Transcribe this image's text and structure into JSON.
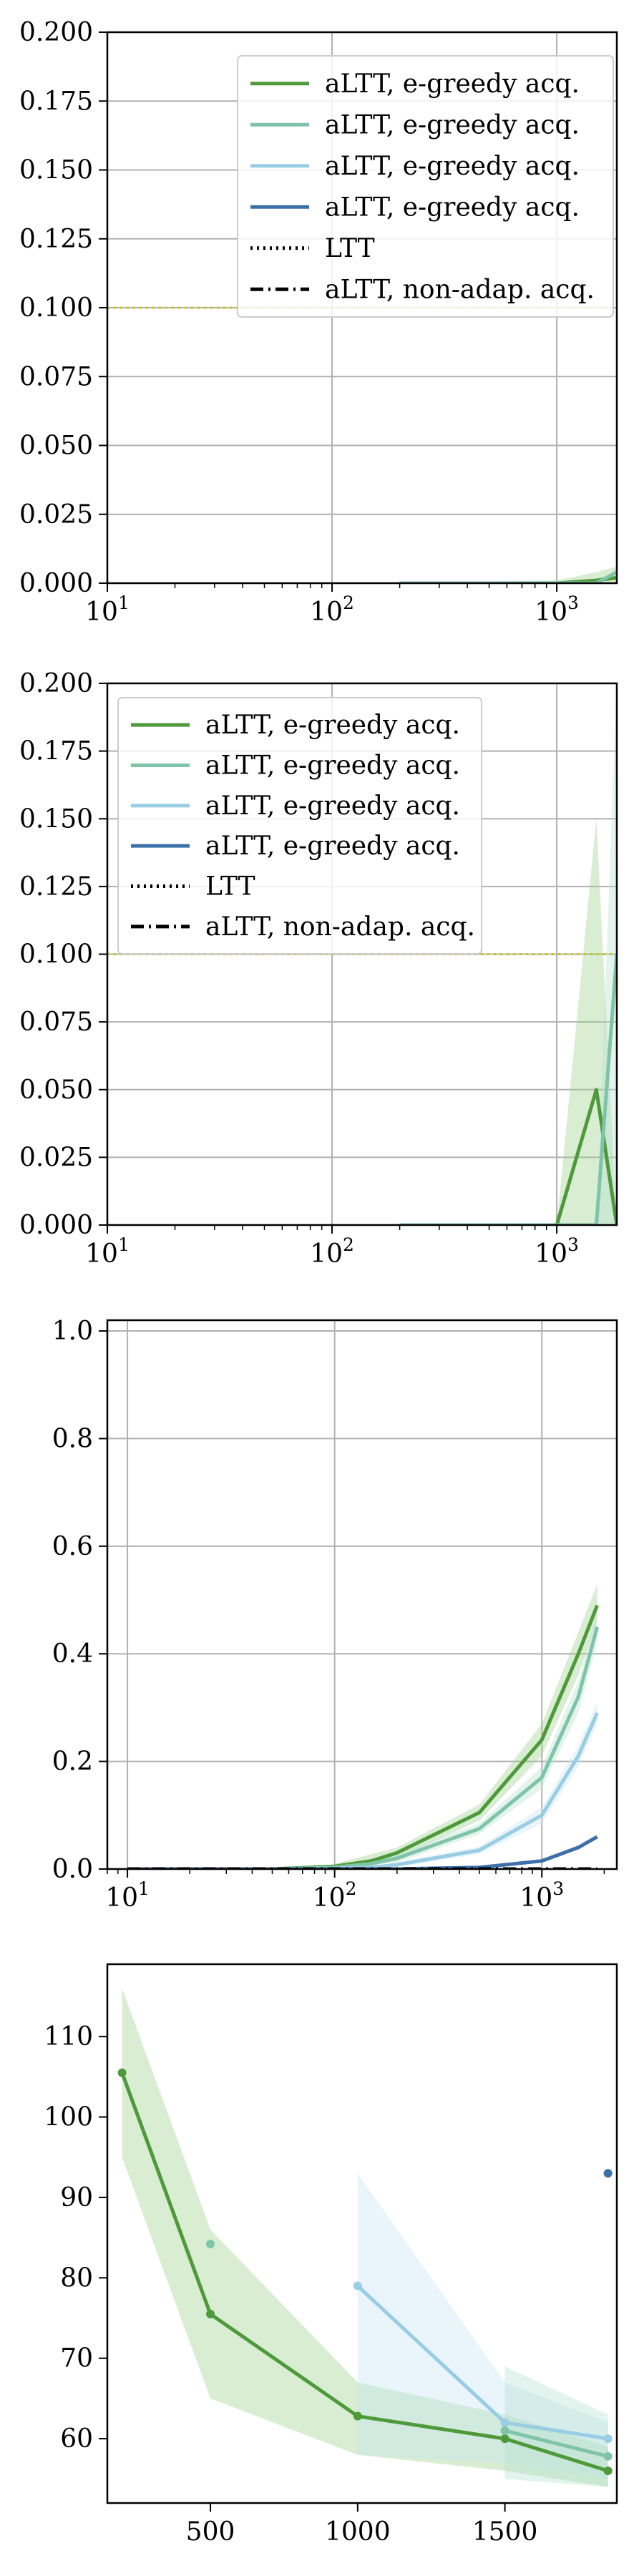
{
  "chart_data": [
    {
      "type": "line",
      "xscale": "log",
      "xlim": [
        10,
        1850
      ],
      "ylim": [
        0,
        0.2
      ],
      "grid": true,
      "xticks": [
        {
          "v": 10,
          "base": "10",
          "exp": "1"
        },
        {
          "v": 100,
          "base": "10",
          "exp": "2"
        },
        {
          "v": 1000,
          "base": "10",
          "exp": "3"
        }
      ],
      "yticks": [
        {
          "v": 0.0,
          "label": "0.000"
        },
        {
          "v": 0.025,
          "label": "0.025"
        },
        {
          "v": 0.05,
          "label": "0.050"
        },
        {
          "v": 0.075,
          "label": "0.075"
        },
        {
          "v": 0.1,
          "label": "0.100"
        },
        {
          "v": 0.125,
          "label": "0.125"
        },
        {
          "v": 0.15,
          "label": "0.150"
        },
        {
          "v": 0.175,
          "label": "0.175"
        },
        {
          "v": 0.2,
          "label": "0.200"
        }
      ],
      "legend": {
        "placement": "top-right",
        "entries": [
          {
            "label": "aLTT, e-greedy acq.",
            "style": "solid",
            "color": "#4e9a3b"
          },
          {
            "label": "aLTT, e-greedy acq.",
            "style": "solid",
            "color": "#7fc4a8"
          },
          {
            "label": "aLTT, e-greedy acq.",
            "style": "solid",
            "color": "#98cde3"
          },
          {
            "label": "aLTT, e-greedy acq.",
            "style": "solid",
            "color": "#3b70a8"
          },
          {
            "label": "LTT",
            "style": "dotted",
            "color": "#000000"
          },
          {
            "label": "aLTT, non-adap. acq.",
            "style": "dashdot",
            "color": "#000000"
          }
        ]
      },
      "hlines": [
        {
          "y": 0.1,
          "color": "#c8c800",
          "style": "dotted"
        }
      ],
      "series": [
        {
          "color": "#4e9a3b",
          "x": [
            200,
            500,
            1000,
            1500,
            1850
          ],
          "y": [
            0,
            0,
            0,
            0.001,
            0.002
          ]
        },
        {
          "color": "#7fc4a8",
          "x": [
            200,
            500,
            1000,
            1500,
            1850
          ],
          "y": [
            0,
            0,
            0,
            0,
            0.004
          ]
        }
      ],
      "bands": [
        {
          "color": "#9ccf8c",
          "x": [
            200,
            1000,
            1500,
            1850
          ],
          "lower": [
            0,
            0,
            0,
            0
          ],
          "upper": [
            0,
            0.001,
            0.004,
            0.006
          ]
        }
      ]
    },
    {
      "type": "line",
      "xscale": "log",
      "xlim": [
        10,
        1850
      ],
      "ylim": [
        0,
        0.2
      ],
      "grid": true,
      "xticks": [
        {
          "v": 10,
          "base": "10",
          "exp": "1"
        },
        {
          "v": 100,
          "base": "10",
          "exp": "2"
        },
        {
          "v": 1000,
          "base": "10",
          "exp": "3"
        }
      ],
      "yticks": [
        {
          "v": 0.0,
          "label": "0.000"
        },
        {
          "v": 0.025,
          "label": "0.025"
        },
        {
          "v": 0.05,
          "label": "0.050"
        },
        {
          "v": 0.075,
          "label": "0.075"
        },
        {
          "v": 0.1,
          "label": "0.100"
        },
        {
          "v": 0.125,
          "label": "0.125"
        },
        {
          "v": 0.15,
          "label": "0.150"
        },
        {
          "v": 0.175,
          "label": "0.175"
        },
        {
          "v": 0.2,
          "label": "0.200"
        }
      ],
      "legend": {
        "placement": "top-left",
        "entries": [
          {
            "label": "aLTT, e-greedy acq.",
            "style": "solid",
            "color": "#4e9a3b"
          },
          {
            "label": "aLTT, e-greedy acq.",
            "style": "solid",
            "color": "#7fc4a8"
          },
          {
            "label": "aLTT, e-greedy acq.",
            "style": "solid",
            "color": "#98cde3"
          },
          {
            "label": "aLTT, e-greedy acq.",
            "style": "solid",
            "color": "#3b70a8"
          },
          {
            "label": "LTT",
            "style": "dotted",
            "color": "#000000"
          },
          {
            "label": "aLTT, non-adap. acq.",
            "style": "dashdot",
            "color": "#000000"
          }
        ]
      },
      "hlines": [
        {
          "y": 0.1,
          "color": "#c8c800",
          "style": "dotted"
        }
      ],
      "series": [
        {
          "color": "#4e9a3b",
          "x": [
            200,
            500,
            1000,
            1500,
            1850
          ],
          "y": [
            0,
            0,
            0,
            0.05,
            0
          ]
        },
        {
          "color": "#7fc4a8",
          "x": [
            200,
            500,
            1000,
            1500,
            1850
          ],
          "y": [
            0,
            0,
            0,
            0,
            0.1
          ]
        }
      ],
      "bands": [
        {
          "color": "#9ccf8c",
          "x": [
            200,
            1000,
            1500,
            1850
          ],
          "lower": [
            0,
            0,
            0,
            0
          ],
          "upper": [
            0,
            0,
            0.15,
            0
          ]
        },
        {
          "color": "#b5e0d0",
          "x": [
            1500,
            1850
          ],
          "lower": [
            0,
            0
          ],
          "upper": [
            0,
            0.2
          ]
        }
      ]
    },
    {
      "type": "line",
      "xscale": "log",
      "xlim": [
        8,
        2300
      ],
      "ylim": [
        0,
        1.02
      ],
      "grid": true,
      "xticks": [
        {
          "v": 10,
          "base": "10",
          "exp": "1"
        },
        {
          "v": 100,
          "base": "10",
          "exp": "2"
        },
        {
          "v": 1000,
          "base": "10",
          "exp": "3"
        }
      ],
      "yticks": [
        {
          "v": 0.0,
          "label": "0.0"
        },
        {
          "v": 0.2,
          "label": "0.2"
        },
        {
          "v": 0.4,
          "label": "0.4"
        },
        {
          "v": 0.6,
          "label": "0.6"
        },
        {
          "v": 0.8,
          "label": "0.8"
        },
        {
          "v": 1.0,
          "label": "1.0"
        }
      ],
      "series": [
        {
          "color": "#4e9a3b",
          "x": [
            10,
            50,
            100,
            150,
            200,
            500,
            1000,
            1500,
            1850
          ],
          "y": [
            0,
            0,
            0.005,
            0.015,
            0.03,
            0.105,
            0.24,
            0.4,
            0.49
          ]
        },
        {
          "color": "#7fc4a8",
          "x": [
            10,
            50,
            100,
            150,
            200,
            500,
            1000,
            1500,
            1850
          ],
          "y": [
            0,
            0,
            0.003,
            0.01,
            0.02,
            0.075,
            0.17,
            0.32,
            0.45
          ]
        },
        {
          "color": "#98cde3",
          "x": [
            10,
            50,
            100,
            150,
            200,
            500,
            1000,
            1500,
            1850
          ],
          "y": [
            0,
            0,
            0.001,
            0.003,
            0.008,
            0.035,
            0.1,
            0.21,
            0.29
          ]
        },
        {
          "color": "#3b70a8",
          "x": [
            10,
            50,
            100,
            200,
            500,
            1000,
            1500,
            1850
          ],
          "y": [
            0,
            0,
            0,
            0,
            0.003,
            0.015,
            0.04,
            0.06
          ]
        },
        {
          "color": "#000000",
          "style": "dashdot",
          "x": [
            10,
            100,
            1000,
            1850
          ],
          "y": [
            0,
            0,
            0,
            0
          ]
        }
      ],
      "bands": [
        {
          "color": "#9ccf8c",
          "x": [
            100,
            200,
            500,
            1000,
            1500,
            1850
          ],
          "lower": [
            0,
            0.02,
            0.09,
            0.21,
            0.36,
            0.46
          ],
          "upper": [
            0.01,
            0.04,
            0.12,
            0.27,
            0.44,
            0.53
          ]
        },
        {
          "color": "#b5e0d0",
          "x": [
            100,
            200,
            500,
            1000,
            1500,
            1850
          ],
          "lower": [
            0,
            0.012,
            0.065,
            0.15,
            0.29,
            0.42
          ],
          "upper": [
            0.006,
            0.028,
            0.085,
            0.19,
            0.35,
            0.48
          ]
        },
        {
          "color": "#c5e4f2",
          "x": [
            200,
            500,
            1000,
            1500,
            1850
          ],
          "lower": [
            0.004,
            0.028,
            0.085,
            0.19,
            0.27
          ],
          "upper": [
            0.012,
            0.042,
            0.115,
            0.23,
            0.31
          ]
        }
      ]
    },
    {
      "type": "line",
      "xscale": "linear",
      "xlim": [
        150,
        1880
      ],
      "ylim": [
        52,
        119
      ],
      "grid": false,
      "xticks": [
        {
          "v": 500,
          "label": "500"
        },
        {
          "v": 1000,
          "label": "1000"
        },
        {
          "v": 1500,
          "label": "1500"
        }
      ],
      "yticks": [
        {
          "v": 60,
          "label": "60"
        },
        {
          "v": 70,
          "label": "70"
        },
        {
          "v": 80,
          "label": "80"
        },
        {
          "v": 90,
          "label": "90"
        },
        {
          "v": 100,
          "label": "100"
        },
        {
          "v": 110,
          "label": "110"
        }
      ],
      "series": [
        {
          "color": "#4e9a3b",
          "x": [
            200,
            500,
            1000,
            1500,
            1850
          ],
          "y": [
            105.5,
            75.5,
            62.8,
            60,
            56
          ]
        },
        {
          "color": "#98cde3",
          "x": [
            1000,
            1500,
            1850
          ],
          "y": [
            79,
            62,
            60
          ]
        },
        {
          "color": "#7fc4a8",
          "x": [
            1500,
            1850
          ],
          "y": [
            61,
            57.8
          ]
        }
      ],
      "points": [
        {
          "color": "#7fc4a8",
          "x": 500,
          "y": 84.2
        },
        {
          "color": "#3b70a8",
          "x": 1850,
          "y": 93
        }
      ],
      "bands": [
        {
          "color": "#9ccf8c",
          "x": [
            200,
            500,
            1000,
            1500,
            1850
          ],
          "lower": [
            95,
            65,
            58,
            56,
            54
          ],
          "upper": [
            116,
            86,
            67,
            63,
            59
          ]
        },
        {
          "color": "#c5e4f2",
          "x": [
            1000,
            1500,
            1850
          ],
          "lower": [
            58,
            57,
            55
          ],
          "upper": [
            93,
            67,
            62
          ]
        },
        {
          "color": "#b5e0d0",
          "x": [
            1500,
            1850
          ],
          "lower": [
            55,
            54
          ],
          "upper": [
            69,
            63
          ]
        }
      ]
    }
  ]
}
